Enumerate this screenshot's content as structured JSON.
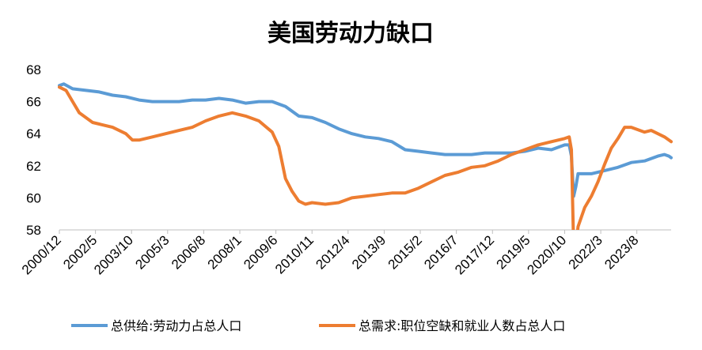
{
  "chart_data": {
    "type": "line",
    "title": "美国劳动力缺口",
    "xlabel": "",
    "ylabel": "",
    "ylim": [
      58,
      68
    ],
    "yticks": [
      58,
      60,
      62,
      64,
      66,
      68
    ],
    "x_tick_labels": [
      "2000/12",
      "2002/5",
      "2003/10",
      "2005/3",
      "2006/8",
      "2008/1",
      "2009/6",
      "2010/11",
      "2012/4",
      "2013/9",
      "2015/2",
      "2016/7",
      "2017/12",
      "2019/5",
      "2020/10",
      "2022/3",
      "2023/8"
    ],
    "x_start": "2000-12",
    "x_end": "2023-12",
    "grid": false,
    "legend_position": "bottom",
    "series": [
      {
        "name": "总供给:劳动力占总人口",
        "color": "#5B9BD5",
        "points": [
          [
            "2000-12",
            67.0
          ],
          [
            "2001-02",
            67.1
          ],
          [
            "2001-06",
            66.8
          ],
          [
            "2001-12",
            66.7
          ],
          [
            "2002-06",
            66.6
          ],
          [
            "2002-12",
            66.4
          ],
          [
            "2003-06",
            66.3
          ],
          [
            "2003-12",
            66.1
          ],
          [
            "2004-06",
            66.0
          ],
          [
            "2004-12",
            66.0
          ],
          [
            "2005-06",
            66.0
          ],
          [
            "2005-12",
            66.1
          ],
          [
            "2006-06",
            66.1
          ],
          [
            "2006-12",
            66.2
          ],
          [
            "2007-06",
            66.1
          ],
          [
            "2007-12",
            65.9
          ],
          [
            "2008-06",
            66.0
          ],
          [
            "2008-12",
            66.0
          ],
          [
            "2009-06",
            65.7
          ],
          [
            "2009-12",
            65.1
          ],
          [
            "2010-06",
            65.0
          ],
          [
            "2010-12",
            64.7
          ],
          [
            "2011-06",
            64.3
          ],
          [
            "2011-12",
            64.0
          ],
          [
            "2012-06",
            63.8
          ],
          [
            "2012-12",
            63.7
          ],
          [
            "2013-06",
            63.5
          ],
          [
            "2013-12",
            63.0
          ],
          [
            "2014-06",
            62.9
          ],
          [
            "2014-12",
            62.8
          ],
          [
            "2015-06",
            62.7
          ],
          [
            "2015-12",
            62.7
          ],
          [
            "2016-06",
            62.7
          ],
          [
            "2016-12",
            62.8
          ],
          [
            "2017-06",
            62.8
          ],
          [
            "2017-12",
            62.8
          ],
          [
            "2018-06",
            62.9
          ],
          [
            "2018-12",
            63.1
          ],
          [
            "2019-06",
            63.0
          ],
          [
            "2019-12",
            63.3
          ],
          [
            "2020-02",
            63.3
          ],
          [
            "2020-03",
            62.6
          ],
          [
            "2020-04",
            60.1
          ],
          [
            "2020-05",
            60.7
          ],
          [
            "2020-06",
            61.5
          ],
          [
            "2020-09",
            61.5
          ],
          [
            "2020-12",
            61.5
          ],
          [
            "2021-06",
            61.7
          ],
          [
            "2021-12",
            61.9
          ],
          [
            "2022-06",
            62.2
          ],
          [
            "2022-12",
            62.3
          ],
          [
            "2023-06",
            62.6
          ],
          [
            "2023-09",
            62.7
          ],
          [
            "2023-11",
            62.6
          ],
          [
            "2023-12",
            62.5
          ]
        ]
      },
      {
        "name": "总需求:职位空缺和就业人数占总人口",
        "color": "#ED7D31",
        "points": [
          [
            "2000-12",
            66.9
          ],
          [
            "2001-03",
            66.7
          ],
          [
            "2001-06",
            66.0
          ],
          [
            "2001-09",
            65.3
          ],
          [
            "2001-12",
            65.0
          ],
          [
            "2002-03",
            64.7
          ],
          [
            "2002-06",
            64.6
          ],
          [
            "2002-12",
            64.4
          ],
          [
            "2003-06",
            64.0
          ],
          [
            "2003-09",
            63.6
          ],
          [
            "2003-12",
            63.6
          ],
          [
            "2004-06",
            63.8
          ],
          [
            "2004-12",
            64.0
          ],
          [
            "2005-06",
            64.2
          ],
          [
            "2005-12",
            64.4
          ],
          [
            "2006-06",
            64.8
          ],
          [
            "2006-12",
            65.1
          ],
          [
            "2007-06",
            65.3
          ],
          [
            "2007-12",
            65.1
          ],
          [
            "2008-06",
            64.8
          ],
          [
            "2008-12",
            64.1
          ],
          [
            "2009-03",
            63.2
          ],
          [
            "2009-06",
            61.2
          ],
          [
            "2009-09",
            60.4
          ],
          [
            "2009-12",
            59.8
          ],
          [
            "2010-03",
            59.6
          ],
          [
            "2010-06",
            59.7
          ],
          [
            "2010-12",
            59.6
          ],
          [
            "2011-06",
            59.7
          ],
          [
            "2011-12",
            60.0
          ],
          [
            "2012-06",
            60.1
          ],
          [
            "2012-12",
            60.2
          ],
          [
            "2013-06",
            60.3
          ],
          [
            "2013-12",
            60.3
          ],
          [
            "2014-06",
            60.6
          ],
          [
            "2014-12",
            61.0
          ],
          [
            "2015-06",
            61.4
          ],
          [
            "2015-12",
            61.6
          ],
          [
            "2016-06",
            61.9
          ],
          [
            "2016-12",
            62.0
          ],
          [
            "2017-06",
            62.3
          ],
          [
            "2017-12",
            62.7
          ],
          [
            "2018-06",
            63.0
          ],
          [
            "2018-12",
            63.3
          ],
          [
            "2019-06",
            63.5
          ],
          [
            "2019-12",
            63.7
          ],
          [
            "2020-02",
            63.8
          ],
          [
            "2020-03",
            63.0
          ],
          [
            "2020-04",
            57.0
          ],
          [
            "2020-05",
            57.0
          ],
          [
            "2020-06",
            58.2
          ],
          [
            "2020-09",
            59.4
          ],
          [
            "2020-12",
            60.1
          ],
          [
            "2021-03",
            61.0
          ],
          [
            "2021-06",
            62.1
          ],
          [
            "2021-09",
            63.1
          ],
          [
            "2021-12",
            63.7
          ],
          [
            "2022-03",
            64.4
          ],
          [
            "2022-06",
            64.4
          ],
          [
            "2022-12",
            64.1
          ],
          [
            "2023-03",
            64.2
          ],
          [
            "2023-06",
            64.0
          ],
          [
            "2023-09",
            63.8
          ],
          [
            "2023-12",
            63.5
          ]
        ]
      }
    ]
  }
}
